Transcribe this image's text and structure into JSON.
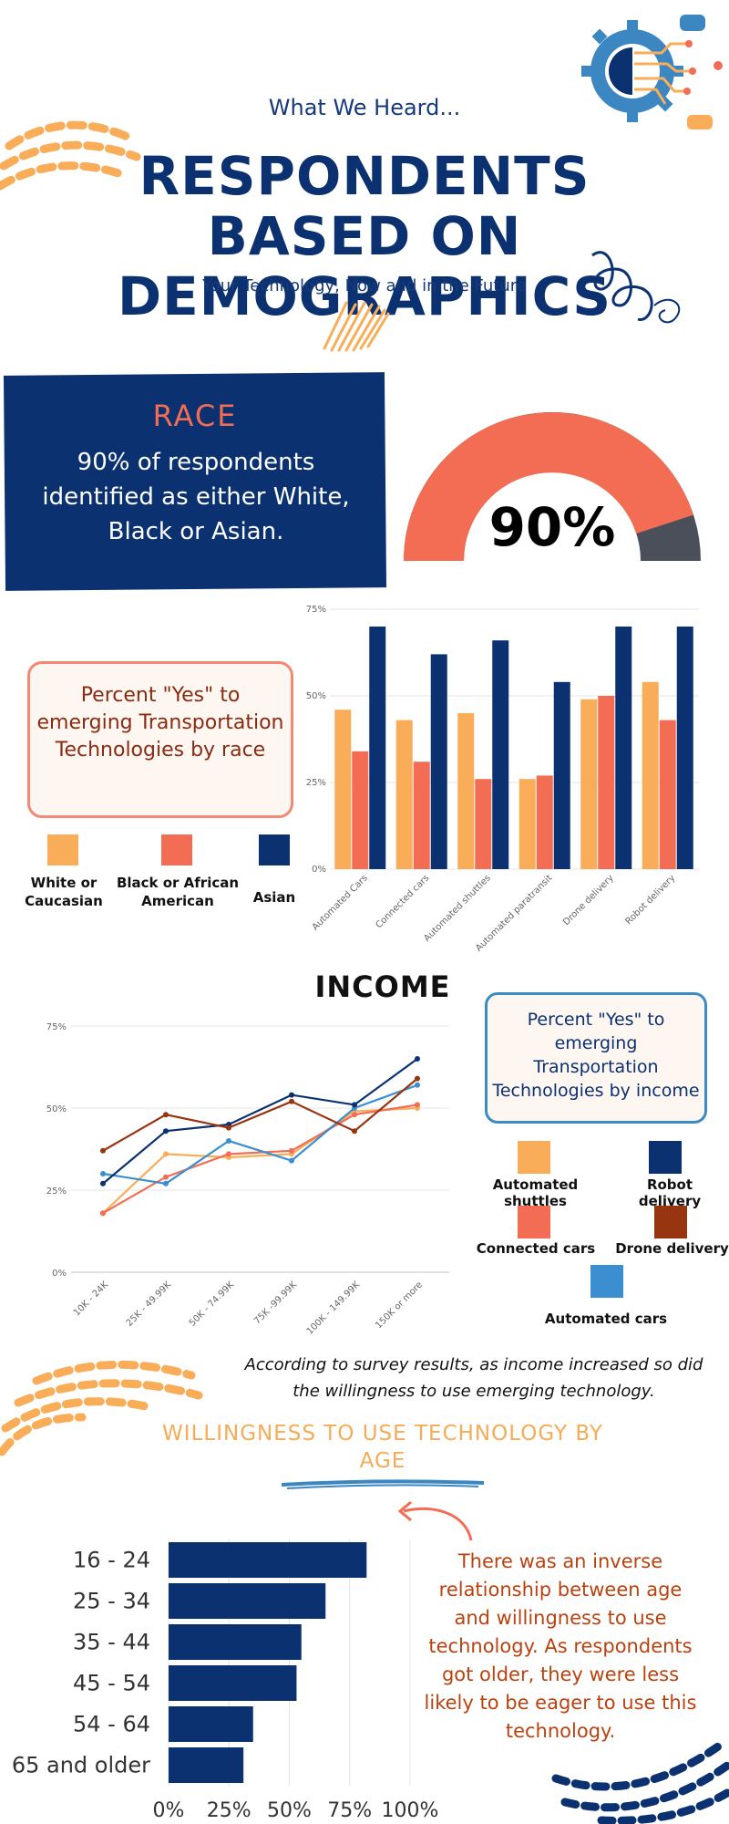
{
  "header": {
    "kicker": "What We Heard...",
    "title": "RESPONDENTS BASED ON DEMOGRAPHICS",
    "subtitle": "Your Technology, Now and in the Future"
  },
  "race": {
    "title": "RACE",
    "text": "90% of respondents identified as either White, Black or Asian.",
    "gauge_value": "90%",
    "gauge_fraction": 0.9,
    "card_text": "Percent \"Yes\" to emerging Transportation Technologies by race",
    "legend": [
      {
        "label": "White or Caucasian",
        "color": "#f9ad58"
      },
      {
        "label": "Black or African American",
        "color": "#f26d53"
      },
      {
        "label": "Asian",
        "color": "#0b3170"
      }
    ]
  },
  "income": {
    "title": "INCOME",
    "card_text": "Percent \"Yes\" to emerging Transportation Technologies by income",
    "legend": [
      {
        "label": "Automated shuttles",
        "color": "#f9ad58"
      },
      {
        "label": "Robot delivery",
        "color": "#0b3170"
      },
      {
        "label": "Connected cars",
        "color": "#f26d53"
      },
      {
        "label": "Drone delivery",
        "color": "#983511"
      },
      {
        "label": "Automated cars",
        "color": "#3b8fd0"
      }
    ],
    "note": "According to survey results, as income increased so did the willingness to use emerging technology."
  },
  "age": {
    "title": "WILLINGNESS TO USE TECHNOLOGY BY AGE",
    "note": "There was an inverse relationship between age and willingness to use technology. As respondents got older, they were less likely to be eager to use this technology."
  },
  "colors": {
    "navy": "#0b3170",
    "coral": "#f26d53",
    "orange": "#f9ad58",
    "rust": "#983511",
    "blue": "#3b8fd0",
    "gauge_track": "#4a4f5a"
  },
  "chart_data": [
    {
      "type": "bar",
      "categories": [
        "Automated Cars",
        "Connected cars",
        "Automated shuttles",
        "Automated paratransit",
        "Drone delivery",
        "Robot delivery"
      ],
      "series": [
        {
          "name": "White or Caucasian",
          "values": [
            46,
            43,
            45,
            26,
            49,
            54
          ]
        },
        {
          "name": "Black or African American",
          "values": [
            34,
            31,
            26,
            27,
            50,
            43
          ]
        },
        {
          "name": "Asian",
          "values": [
            70,
            62,
            66,
            54,
            70,
            70
          ]
        }
      ],
      "yticks": [
        "0%",
        "25%",
        "50%",
        "75%"
      ],
      "ylim": [
        0,
        75
      ]
    },
    {
      "type": "line",
      "categories": [
        "10K - 24K",
        "25K - 49.99K",
        "50K - 74.99K",
        "75K -99.99K",
        "100K - 149.99K",
        "150K or more"
      ],
      "series": [
        {
          "name": "Automated shuttles",
          "values": [
            18,
            36,
            35,
            36,
            49,
            50
          ]
        },
        {
          "name": "Connected cars",
          "values": [
            18,
            29,
            36,
            37,
            48,
            51
          ]
        },
        {
          "name": "Automated cars",
          "values": [
            30,
            27,
            40,
            34,
            50,
            57
          ]
        },
        {
          "name": "Robot delivery",
          "values": [
            27,
            43,
            45,
            54,
            51,
            65
          ]
        },
        {
          "name": "Drone delivery",
          "values": [
            37,
            48,
            44,
            52,
            43,
            59
          ]
        }
      ],
      "yticks": [
        "0%",
        "25%",
        "50%",
        "75%"
      ],
      "ylim": [
        0,
        75
      ]
    },
    {
      "type": "bar",
      "orientation": "horizontal",
      "categories": [
        "16 - 24",
        "25 - 34",
        "35 - 44",
        "45 - 54",
        "54 - 64",
        "65 and older"
      ],
      "values": [
        82,
        65,
        55,
        53,
        35,
        31
      ],
      "xticks": [
        "0%",
        "25%",
        "50%",
        "75%",
        "100%"
      ],
      "xlim": [
        0,
        100
      ]
    }
  ]
}
